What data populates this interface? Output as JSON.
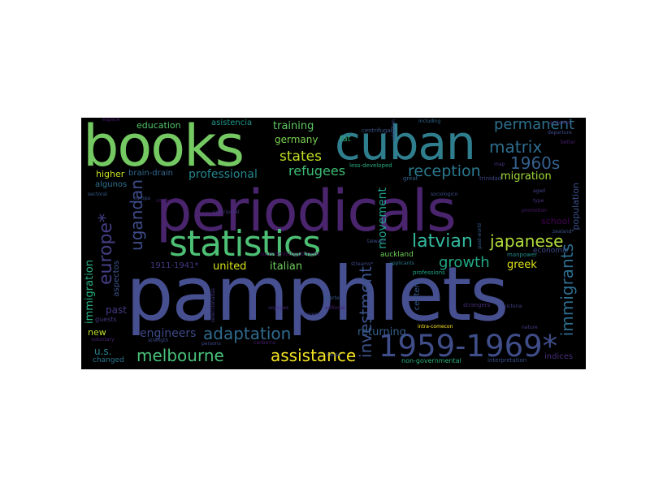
{
  "image": {
    "background": "#000000",
    "page_background": "#ffffff"
  },
  "words": [
    {
      "text": "pamphlets",
      "color": "#464f8f"
    },
    {
      "text": "periodicals",
      "color": "#4a256e"
    },
    {
      "text": "books",
      "color": "#74c962"
    },
    {
      "text": "cuban",
      "color": "#2f7e8e"
    },
    {
      "text": "statistics",
      "color": "#4dc075"
    },
    {
      "text": "1959-1969*",
      "color": "#3f4d89"
    },
    {
      "text": "assistance",
      "color": "#f4e322"
    },
    {
      "text": "melbourne",
      "color": "#48c17a"
    },
    {
      "text": "adaptation",
      "color": "#2f6b8e"
    },
    {
      "text": "japanese",
      "color": "#b2dc3c"
    },
    {
      "text": "latvian",
      "color": "#32b9a0"
    },
    {
      "text": "matrix",
      "color": "#2e6d8e"
    },
    {
      "text": "1960s",
      "color": "#35608d"
    },
    {
      "text": "reception",
      "color": "#2a788e"
    },
    {
      "text": "permanent",
      "color": "#2d708e"
    },
    {
      "text": "refugees",
      "color": "#3dbc74"
    },
    {
      "text": "states",
      "color": "#c2df23"
    },
    {
      "text": "growth",
      "color": "#22a884"
    },
    {
      "text": "investment",
      "color": "#3b528b"
    },
    {
      "text": "europe*",
      "color": "#433e85"
    },
    {
      "text": "ugandan",
      "color": "#3d4d8a"
    },
    {
      "text": "immigrants",
      "color": "#2e6e8e"
    },
    {
      "text": "training",
      "color": "#5ec962"
    },
    {
      "text": "education",
      "color": "#54c568"
    },
    {
      "text": "germany",
      "color": "#7ad151"
    },
    {
      "text": "professional",
      "color": "#24868e"
    },
    {
      "text": "migration",
      "color": "#a0da39"
    },
    {
      "text": "engineers",
      "color": "#3e4989"
    },
    {
      "text": "italian",
      "color": "#6ccd5a"
    },
    {
      "text": "united",
      "color": "#d5e21a"
    },
    {
      "text": "greek",
      "color": "#dde318"
    },
    {
      "text": "returning",
      "color": "#355f8d"
    },
    {
      "text": "movement",
      "color": "#1f9e89"
    },
    {
      "text": "immigration",
      "color": "#29af7f"
    },
    {
      "text": "u.s.",
      "color": "#26828e"
    },
    {
      "text": "past",
      "color": "#453882"
    },
    {
      "text": "new",
      "color": "#bddf26"
    },
    {
      "text": "higher",
      "color": "#c5e021"
    },
    {
      "text": "algunos",
      "color": "#2c728e"
    },
    {
      "text": "brain-drain",
      "color": "#31688e"
    },
    {
      "text": "school",
      "color": "#440154"
    },
    {
      "text": "population",
      "color": "#3b518b"
    },
    {
      "text": "economic",
      "color": "#3e4a89"
    },
    {
      "text": "indices",
      "color": "#472d7b"
    },
    {
      "text": "centers",
      "color": "#38588c"
    },
    {
      "text": "asistencia",
      "color": "#1f968b"
    },
    {
      "text": "aspectos",
      "color": "#3b528b"
    },
    {
      "text": "1911-1941*",
      "color": "#443983"
    },
    {
      "text": "changed",
      "color": "#2a768e"
    },
    {
      "text": "auckland",
      "color": "#6ece58"
    },
    {
      "text": "intra-comecon",
      "color": "#fde725"
    },
    {
      "text": "non-governmental",
      "color": "#2db27d"
    },
    {
      "text": "less-developed",
      "color": "#27ad81"
    },
    {
      "text": "centrifugal",
      "color": "#3a538b"
    },
    {
      "text": "centripetal",
      "color": "#46337f"
    },
    {
      "text": "canberra",
      "color": "#481f70"
    },
    {
      "text": "sous-developpement",
      "color": "#46085c"
    },
    {
      "text": "trinidad",
      "color": "#3f4788"
    },
    {
      "text": "professions",
      "color": "#20a486"
    },
    {
      "text": "interpretation",
      "color": "#3b518b"
    },
    {
      "text": "manpower",
      "color": "#238a8d"
    },
    {
      "text": "map",
      "color": "#46337e"
    },
    {
      "text": "fat",
      "color": "#35b779"
    },
    {
      "text": "strangers",
      "color": "#472c7a"
    },
    {
      "text": "taiwan*",
      "color": "#3b528b"
    },
    {
      "text": "applicants",
      "color": "#2a788e"
    },
    {
      "text": "great",
      "color": "#34618d"
    },
    {
      "text": "espace",
      "color": "#481769"
    },
    {
      "text": "sectoral",
      "color": "#355e8d"
    },
    {
      "text": "europa",
      "color": "#3d4e8a"
    },
    {
      "text": "guests",
      "color": "#453781"
    },
    {
      "text": "voluntary",
      "color": "#482677"
    },
    {
      "text": "strength",
      "color": "#3c4f8a"
    },
    {
      "text": "cause",
      "color": "#3e4a89"
    },
    {
      "text": "lawyers",
      "color": "#414487"
    },
    {
      "text": "aporte",
      "color": "#38598c"
    },
    {
      "text": "editorial",
      "color": "#482475"
    },
    {
      "text": "including",
      "color": "#31688e"
    },
    {
      "text": "departure",
      "color": "#3e4c8a"
    },
    {
      "text": "better",
      "color": "#481c6e"
    },
    {
      "text": "aged",
      "color": "#404688"
    },
    {
      "text": "type",
      "color": "#46327e"
    },
    {
      "text": "promotion",
      "color": "#48196b"
    },
    {
      "text": "past-world",
      "color": "#365c8d"
    },
    {
      "text": "victoria",
      "color": "#424086"
    },
    {
      "text": "societies",
      "color": "#472d7b"
    },
    {
      "text": "nature",
      "color": "#443a83"
    },
    {
      "text": "persons",
      "color": "#3f4889"
    },
    {
      "text": "conference",
      "color": "#481a6c"
    },
    {
      "text": "adoption",
      "color": "#3e4a89"
    },
    {
      "text": "sociologico",
      "color": "#3c4f8a"
    },
    {
      "text": "zealand*",
      "color": "#3b528b"
    },
    {
      "text": "seleccionadas",
      "color": "#443983"
    },
    {
      "text": "voyages",
      "color": "#46307e"
    },
    {
      "text": "streams*",
      "color": "#3e4989"
    }
  ]
}
